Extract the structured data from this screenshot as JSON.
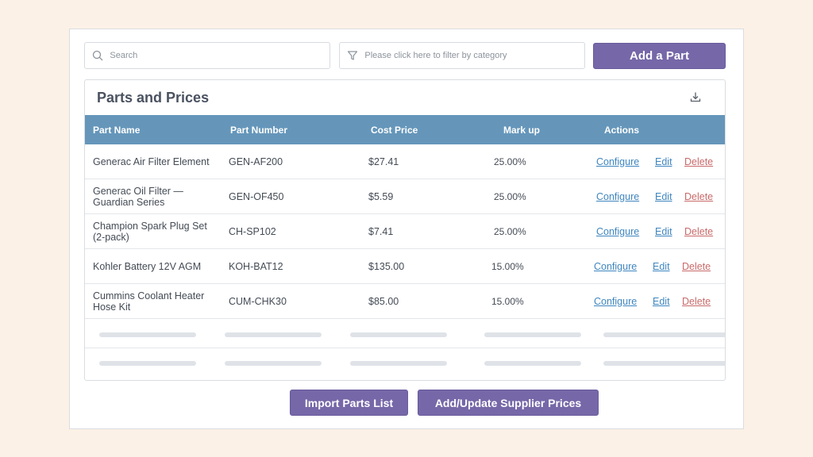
{
  "search": {
    "placeholder": "Search"
  },
  "filter": {
    "placeholder": "Please click here to filter by category"
  },
  "add_part_label": "Add a Part",
  "card": {
    "title": "Parts and Prices"
  },
  "columns": [
    "Part Name",
    "Part Number",
    "Cost Price",
    "Mark up",
    "Actions"
  ],
  "rows": [
    {
      "name": "Generac Air Filter Element",
      "number": "GEN-AF200",
      "cost": "$27.41",
      "markup": "25.00%"
    },
    {
      "name": "Generac Oil Filter — Guardian Series",
      "number": "GEN-OF450",
      "cost": "$5.59",
      "markup": "25.00%"
    },
    {
      "name": "Champion Spark Plug Set (2-pack)",
      "number": "CH-SP102",
      "cost": "$7.41",
      "markup": "25.00%"
    },
    {
      "name": "Kohler Battery 12V AGM",
      "number": "KOH-BAT12",
      "cost": "$135.00",
      "markup": "15.00%"
    },
    {
      "name": "Cummins Coolant Heater Hose Kit",
      "number": "CUM-CHK30",
      "cost": "$85.00",
      "markup": "15.00%"
    }
  ],
  "actions": {
    "configure": "Configure",
    "edit": "Edit",
    "delete": "Delete"
  },
  "footer": {
    "import_label": "Import Parts List",
    "supplier_label": "Add/Update Supplier Prices"
  },
  "colors": {
    "accent": "#7667a8",
    "header": "#6596ba",
    "link": "#3f86bf",
    "danger": "#c96a6a",
    "background": "#fcf1e6"
  },
  "icons": {
    "search": "search-icon",
    "filter": "filter-icon",
    "download": "download-icon"
  }
}
